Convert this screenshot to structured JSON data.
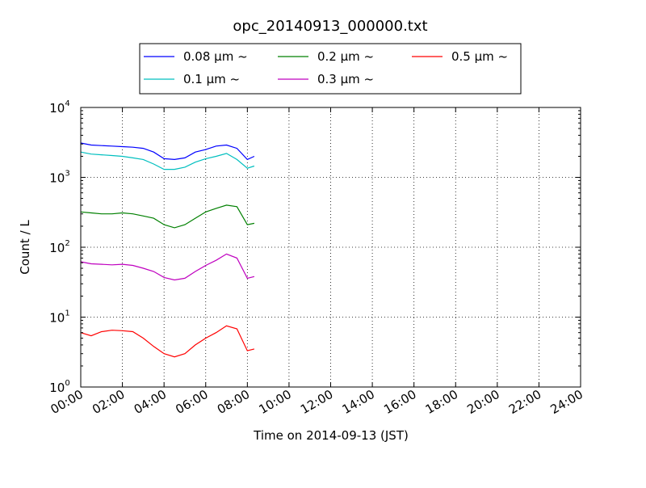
{
  "chart_data": {
    "type": "line",
    "title": "opc_20140913_000000.txt",
    "xlabel": "Time on 2014-09-13 (JST)",
    "ylabel": "Count / L",
    "x_scale": "time",
    "y_scale": "log",
    "xlim": [
      "00:00",
      "24:00"
    ],
    "ylim": [
      1,
      10000
    ],
    "x_ticks": [
      "00:00",
      "02:00",
      "04:00",
      "06:00",
      "08:00",
      "10:00",
      "12:00",
      "14:00",
      "16:00",
      "18:00",
      "20:00",
      "22:00",
      "24:00"
    ],
    "y_ticks": [
      {
        "base": "10",
        "exp": "0"
      },
      {
        "base": "10",
        "exp": "1"
      },
      {
        "base": "10",
        "exp": "2"
      },
      {
        "base": "10",
        "exp": "3"
      },
      {
        "base": "10",
        "exp": "4"
      }
    ],
    "grid": true,
    "legend_placement": "top-center",
    "x": [
      "00:00",
      "00:30",
      "01:00",
      "01:30",
      "02:00",
      "02:30",
      "03:00",
      "03:30",
      "04:00",
      "04:30",
      "05:00",
      "05:30",
      "06:00",
      "06:30",
      "07:00",
      "07:30",
      "08:00",
      "08:20"
    ],
    "series": [
      {
        "name": "0.08 μm ~",
        "color": "#0000ff",
        "values": [
          3100,
          2900,
          2850,
          2800,
          2750,
          2700,
          2600,
          2300,
          1850,
          1800,
          1900,
          2300,
          2500,
          2800,
          2900,
          2600,
          1800,
          2000
        ]
      },
      {
        "name": "0.1 μm ~",
        "color": "#00bfbf",
        "values": [
          2300,
          2150,
          2100,
          2050,
          2000,
          1900,
          1800,
          1550,
          1300,
          1300,
          1400,
          1650,
          1850,
          2000,
          2200,
          1800,
          1350,
          1450
        ]
      },
      {
        "name": "0.2 μm ~",
        "color": "#008000",
        "values": [
          320,
          310,
          300,
          300,
          310,
          300,
          280,
          260,
          210,
          190,
          210,
          260,
          320,
          360,
          400,
          380,
          210,
          220
        ]
      },
      {
        "name": "0.3 μm ~",
        "color": "#bf00bf",
        "values": [
          62,
          58,
          57,
          56,
          57,
          55,
          50,
          45,
          37,
          34,
          36,
          45,
          55,
          65,
          80,
          70,
          36,
          38
        ]
      },
      {
        "name": "0.5 μm ~",
        "color": "#ff0000",
        "values": [
          6.0,
          5.4,
          6.2,
          6.5,
          6.4,
          6.2,
          5.0,
          3.8,
          3.0,
          2.7,
          3.0,
          4.0,
          5.0,
          6.0,
          7.5,
          6.8,
          3.3,
          3.5
        ]
      }
    ]
  }
}
